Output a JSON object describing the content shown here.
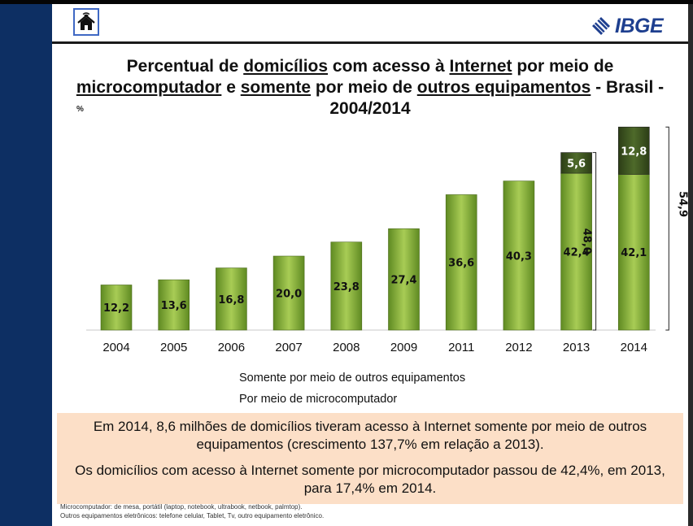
{
  "header": {
    "logo_text": "IBGE",
    "home_icon": "home-icon"
  },
  "title": {
    "part1": "Percentual de ",
    "u1": "domicílios",
    "part2": " com acesso à ",
    "u2": "Internet",
    "part3": " por meio de ",
    "u3": "microcomputador",
    "part4": " e ",
    "u4": "somente",
    "part5": " por meio de ",
    "u5": "outros equipamentos",
    "part6": " - Brasil - 2004/2014"
  },
  "unit_label": "%",
  "chart_data": {
    "type": "bar",
    "stacked": true,
    "categories": [
      "2004",
      "2005",
      "2006",
      "2007",
      "2008",
      "2009",
      "2011",
      "2012",
      "2013",
      "2014"
    ],
    "series": [
      {
        "name": "Por meio de microcomputador",
        "color": "#8cb53a",
        "values": [
          12.2,
          13.6,
          16.8,
          20.0,
          23.8,
          27.4,
          36.6,
          40.3,
          42.4,
          42.1
        ],
        "labels": [
          "12,2",
          "13,6",
          "16,8",
          "20,0",
          "23,8",
          "27,4",
          "36,6",
          "40,3",
          "42,4",
          "42,1"
        ]
      },
      {
        "name": "Somente por meio de outros equipamentos",
        "color": "#3d5220",
        "values": [
          0,
          0,
          0,
          0,
          0,
          0,
          0,
          0,
          5.6,
          12.8
        ],
        "labels": [
          "",
          "",
          "",
          "",
          "",
          "",
          "",
          "",
          "5,6",
          "12,8"
        ]
      }
    ],
    "totals": [
      {
        "category": "2013",
        "value": 48.0,
        "label": "48,0"
      },
      {
        "category": "2014",
        "value": 54.9,
        "label": "54,9"
      }
    ],
    "ylim": [
      0,
      55
    ],
    "legend_position": "bottom"
  },
  "info": {
    "line1": "Em 2014, 8,6 milhões de domicílios tiveram acesso à Internet somente por meio de outros equipamentos (crescimento 137,7% em relação a 2013).",
    "line2": "Os domicílios com acesso à Internet somente por microcomputador passou de 42,4%, em 2013, para 17,4% em 2014."
  },
  "footnotes": {
    "note1": "Microcomputador: de mesa, portátil (laptop, notebook, ultrabook, netbook, palmtop).",
    "note2": "Outros equipamentos eletrônicos: telefone celular, Tablet, Tv, outro equipamento eletrônico."
  }
}
